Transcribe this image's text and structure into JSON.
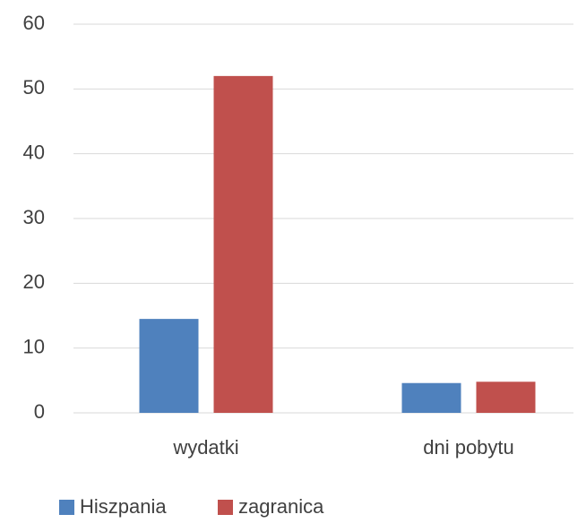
{
  "chart_data": {
    "type": "bar",
    "categories": [
      "wydatki",
      "dni pobytu"
    ],
    "series": [
      {
        "name": "Hiszpania",
        "color": "#4f81bd",
        "values": [
          14.5,
          4.6
        ]
      },
      {
        "name": "zagranica",
        "color": "#c0504d",
        "values": [
          52,
          4.8
        ]
      }
    ],
    "ylim": [
      0,
      60
    ],
    "yticks": [
      0,
      10,
      20,
      30,
      40,
      50,
      60
    ],
    "grid": true,
    "legend": "bottom"
  }
}
